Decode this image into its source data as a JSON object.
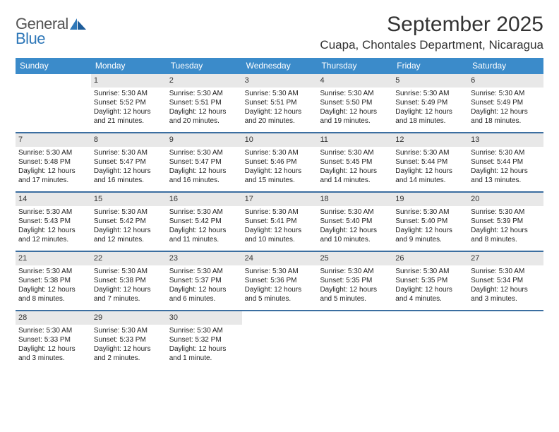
{
  "logo": {
    "text1": "General",
    "text2": "Blue",
    "color1": "#555555",
    "color2": "#2e77b8"
  },
  "title": "September 2025",
  "location": "Cuapa, Chontales Department, Nicaragua",
  "header_bg": "#3b8bca",
  "row_border": "#3b6ea0",
  "daynum_bg": "#e8e8e8",
  "weekdays": [
    "Sunday",
    "Monday",
    "Tuesday",
    "Wednesday",
    "Thursday",
    "Friday",
    "Saturday"
  ],
  "weeks": [
    [
      {
        "empty": true
      },
      {
        "day": "1",
        "sunrise": "Sunrise: 5:30 AM",
        "sunset": "Sunset: 5:52 PM",
        "daylight": "Daylight: 12 hours and 21 minutes."
      },
      {
        "day": "2",
        "sunrise": "Sunrise: 5:30 AM",
        "sunset": "Sunset: 5:51 PM",
        "daylight": "Daylight: 12 hours and 20 minutes."
      },
      {
        "day": "3",
        "sunrise": "Sunrise: 5:30 AM",
        "sunset": "Sunset: 5:51 PM",
        "daylight": "Daylight: 12 hours and 20 minutes."
      },
      {
        "day": "4",
        "sunrise": "Sunrise: 5:30 AM",
        "sunset": "Sunset: 5:50 PM",
        "daylight": "Daylight: 12 hours and 19 minutes."
      },
      {
        "day": "5",
        "sunrise": "Sunrise: 5:30 AM",
        "sunset": "Sunset: 5:49 PM",
        "daylight": "Daylight: 12 hours and 18 minutes."
      },
      {
        "day": "6",
        "sunrise": "Sunrise: 5:30 AM",
        "sunset": "Sunset: 5:49 PM",
        "daylight": "Daylight: 12 hours and 18 minutes."
      }
    ],
    [
      {
        "day": "7",
        "sunrise": "Sunrise: 5:30 AM",
        "sunset": "Sunset: 5:48 PM",
        "daylight": "Daylight: 12 hours and 17 minutes."
      },
      {
        "day": "8",
        "sunrise": "Sunrise: 5:30 AM",
        "sunset": "Sunset: 5:47 PM",
        "daylight": "Daylight: 12 hours and 16 minutes."
      },
      {
        "day": "9",
        "sunrise": "Sunrise: 5:30 AM",
        "sunset": "Sunset: 5:47 PM",
        "daylight": "Daylight: 12 hours and 16 minutes."
      },
      {
        "day": "10",
        "sunrise": "Sunrise: 5:30 AM",
        "sunset": "Sunset: 5:46 PM",
        "daylight": "Daylight: 12 hours and 15 minutes."
      },
      {
        "day": "11",
        "sunrise": "Sunrise: 5:30 AM",
        "sunset": "Sunset: 5:45 PM",
        "daylight": "Daylight: 12 hours and 14 minutes."
      },
      {
        "day": "12",
        "sunrise": "Sunrise: 5:30 AM",
        "sunset": "Sunset: 5:44 PM",
        "daylight": "Daylight: 12 hours and 14 minutes."
      },
      {
        "day": "13",
        "sunrise": "Sunrise: 5:30 AM",
        "sunset": "Sunset: 5:44 PM",
        "daylight": "Daylight: 12 hours and 13 minutes."
      }
    ],
    [
      {
        "day": "14",
        "sunrise": "Sunrise: 5:30 AM",
        "sunset": "Sunset: 5:43 PM",
        "daylight": "Daylight: 12 hours and 12 minutes."
      },
      {
        "day": "15",
        "sunrise": "Sunrise: 5:30 AM",
        "sunset": "Sunset: 5:42 PM",
        "daylight": "Daylight: 12 hours and 12 minutes."
      },
      {
        "day": "16",
        "sunrise": "Sunrise: 5:30 AM",
        "sunset": "Sunset: 5:42 PM",
        "daylight": "Daylight: 12 hours and 11 minutes."
      },
      {
        "day": "17",
        "sunrise": "Sunrise: 5:30 AM",
        "sunset": "Sunset: 5:41 PM",
        "daylight": "Daylight: 12 hours and 10 minutes."
      },
      {
        "day": "18",
        "sunrise": "Sunrise: 5:30 AM",
        "sunset": "Sunset: 5:40 PM",
        "daylight": "Daylight: 12 hours and 10 minutes."
      },
      {
        "day": "19",
        "sunrise": "Sunrise: 5:30 AM",
        "sunset": "Sunset: 5:40 PM",
        "daylight": "Daylight: 12 hours and 9 minutes."
      },
      {
        "day": "20",
        "sunrise": "Sunrise: 5:30 AM",
        "sunset": "Sunset: 5:39 PM",
        "daylight": "Daylight: 12 hours and 8 minutes."
      }
    ],
    [
      {
        "day": "21",
        "sunrise": "Sunrise: 5:30 AM",
        "sunset": "Sunset: 5:38 PM",
        "daylight": "Daylight: 12 hours and 8 minutes."
      },
      {
        "day": "22",
        "sunrise": "Sunrise: 5:30 AM",
        "sunset": "Sunset: 5:38 PM",
        "daylight": "Daylight: 12 hours and 7 minutes."
      },
      {
        "day": "23",
        "sunrise": "Sunrise: 5:30 AM",
        "sunset": "Sunset: 5:37 PM",
        "daylight": "Daylight: 12 hours and 6 minutes."
      },
      {
        "day": "24",
        "sunrise": "Sunrise: 5:30 AM",
        "sunset": "Sunset: 5:36 PM",
        "daylight": "Daylight: 12 hours and 5 minutes."
      },
      {
        "day": "25",
        "sunrise": "Sunrise: 5:30 AM",
        "sunset": "Sunset: 5:35 PM",
        "daylight": "Daylight: 12 hours and 5 minutes."
      },
      {
        "day": "26",
        "sunrise": "Sunrise: 5:30 AM",
        "sunset": "Sunset: 5:35 PM",
        "daylight": "Daylight: 12 hours and 4 minutes."
      },
      {
        "day": "27",
        "sunrise": "Sunrise: 5:30 AM",
        "sunset": "Sunset: 5:34 PM",
        "daylight": "Daylight: 12 hours and 3 minutes."
      }
    ],
    [
      {
        "day": "28",
        "sunrise": "Sunrise: 5:30 AM",
        "sunset": "Sunset: 5:33 PM",
        "daylight": "Daylight: 12 hours and 3 minutes."
      },
      {
        "day": "29",
        "sunrise": "Sunrise: 5:30 AM",
        "sunset": "Sunset: 5:33 PM",
        "daylight": "Daylight: 12 hours and 2 minutes."
      },
      {
        "day": "30",
        "sunrise": "Sunrise: 5:30 AM",
        "sunset": "Sunset: 5:32 PM",
        "daylight": "Daylight: 12 hours and 1 minute."
      },
      {
        "empty": true
      },
      {
        "empty": true
      },
      {
        "empty": true
      },
      {
        "empty": true
      }
    ]
  ]
}
